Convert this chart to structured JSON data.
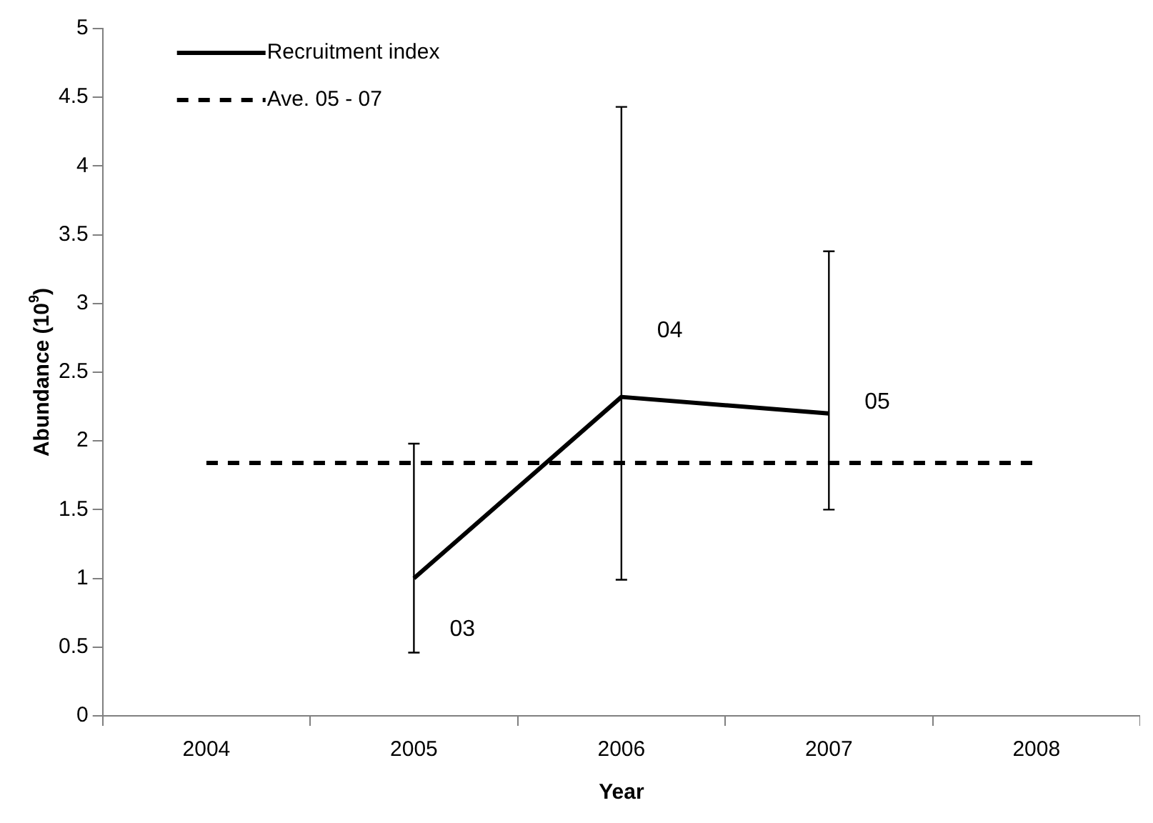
{
  "chart_data": {
    "type": "line",
    "xlabel": "Year",
    "ylabel": "Abundance (10$^{9}$)",
    "categories": [
      "2004",
      "2005",
      "2006",
      "2007",
      "2008"
    ],
    "ylim": [
      0,
      5
    ],
    "yticks": [
      0,
      0.5,
      1,
      1.5,
      2,
      2.5,
      3,
      3.5,
      4,
      4.5,
      5
    ],
    "grid": false,
    "legend": "top left",
    "marker": "none",
    "series": [
      {
        "name": "Recruitment index",
        "color": "#000000",
        "line_style": "solid",
        "values": [
          null,
          1.0,
          2.32,
          2.2,
          null
        ],
        "errors": [
          null,
          [
            0.46,
            1.98
          ],
          [
            0.99,
            4.43
          ],
          [
            1.5,
            3.38
          ],
          null
        ]
      },
      {
        "name": "Ave. 05 - 07",
        "color": "#000000",
        "line_style": "dashed",
        "values": [
          1.84,
          1.84,
          1.84,
          1.84,
          1.84
        ]
      }
    ],
    "annotations": [
      {
        "text": "03",
        "x": "2005",
        "y": 0.63
      },
      {
        "text": "04",
        "x": "2006",
        "y": 2.8
      },
      {
        "text": "05",
        "x": "2007",
        "y": 2.28
      }
    ]
  }
}
